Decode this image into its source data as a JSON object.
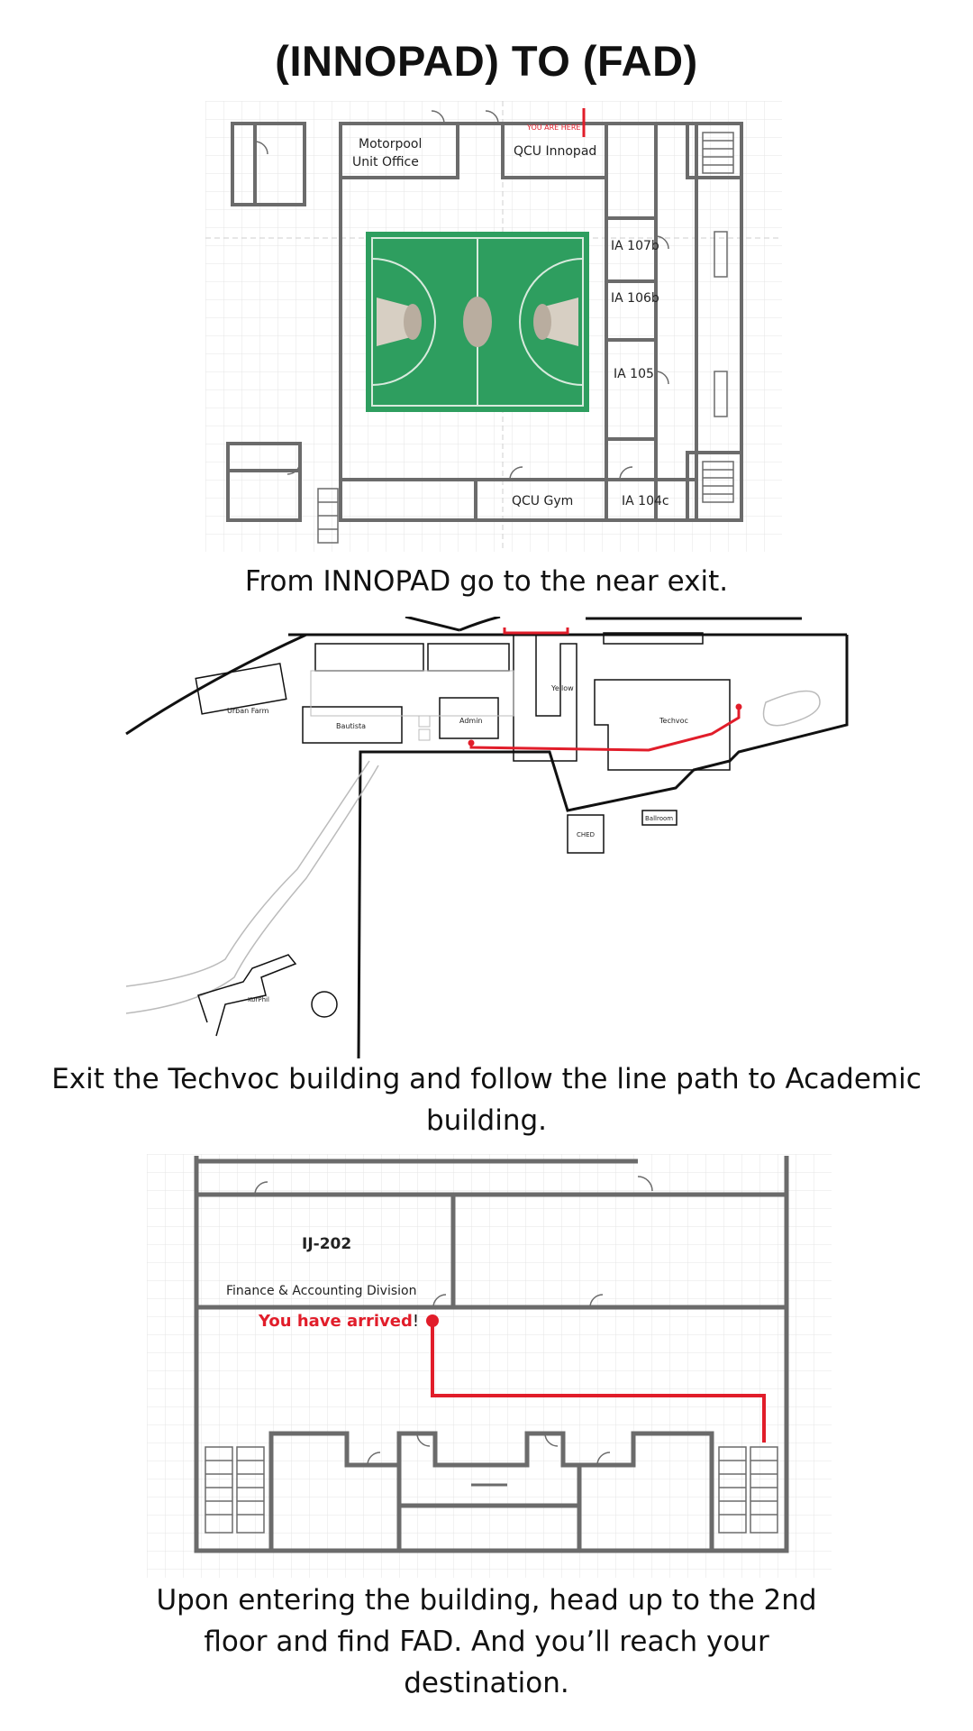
{
  "page": {
    "title": "(INNOPAD) TO (FAD)"
  },
  "step1": {
    "caption": "From INNOPAD go to the near exit.",
    "you_are_here": "YOU ARE HERE",
    "rooms": {
      "motorpool_line1": "Motorpool",
      "motorpool_line2": "Unit Office",
      "innopad": "QCU Innopad",
      "ia107b": "IA 107b",
      "ia106b": "IA 106b",
      "ia105": "IA 105",
      "gym": "QCU Gym",
      "ia104c": "IA 104c"
    },
    "colors": {
      "court": "#2e9e5f",
      "path": "#e11d2a",
      "wall": "#6b6b6b"
    }
  },
  "step2": {
    "caption": "Exit the Techvoc building and follow the line path to Academic building.",
    "buildings": {
      "urban_farm": "Urban Farm",
      "bautista": "Bautista",
      "admin": "Admin",
      "yellow": "Yellow",
      "techvoc": "Techvoc",
      "ched": "CHED",
      "ballroom": "Ballroom",
      "korphil": "KorPhil"
    }
  },
  "step3": {
    "caption": "Upon entering the building, head up to the 2nd floor and find FAD. And you’ll reach your destination.",
    "room_code": "IJ-202",
    "room_name": "Finance & Accounting Division",
    "arrived_text": "You have arrived",
    "arrived_mark": "!"
  }
}
